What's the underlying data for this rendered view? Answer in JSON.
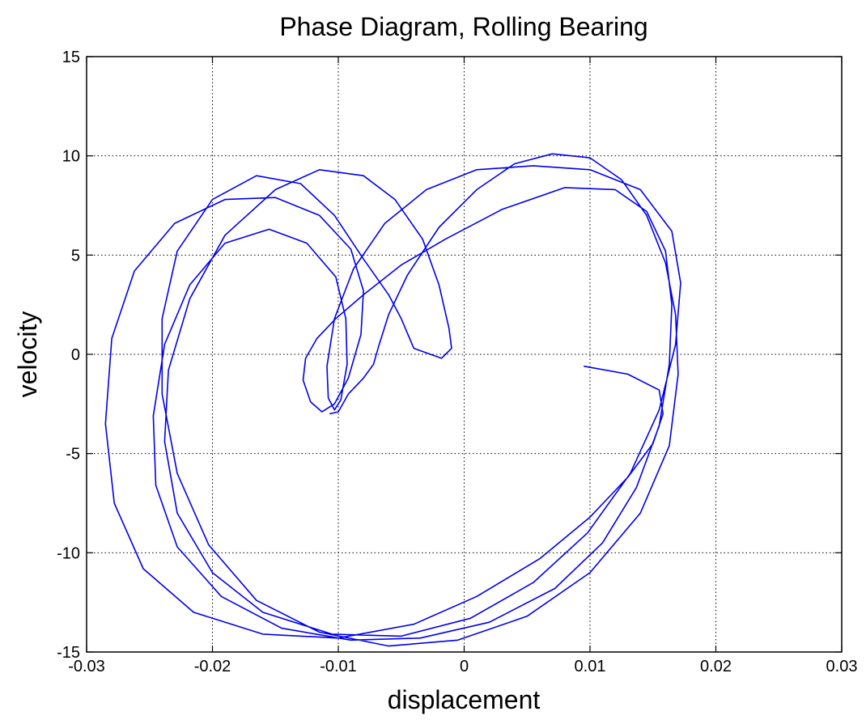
{
  "chart_data": {
    "type": "line",
    "title": "Phase Diagram, Rolling Bearing",
    "xlabel": "displacement",
    "ylabel": "velocity",
    "xlim": [
      -0.03,
      0.03
    ],
    "ylim": [
      -15,
      15
    ],
    "grid": true,
    "grid_style": "dotted",
    "xticks": [
      -0.03,
      -0.02,
      -0.01,
      0,
      0.01,
      0.02,
      0.03
    ],
    "xtick_labels": [
      "-0.03",
      "-0.02",
      "-0.01",
      "0",
      "0.01",
      "0.02",
      "0.03"
    ],
    "yticks": [
      -15,
      -10,
      -5,
      0,
      5,
      10,
      15
    ],
    "ytick_labels": [
      "-15",
      "-10",
      "-5",
      "0",
      "5",
      "10",
      "15"
    ],
    "series": [
      {
        "color": "#0000ee",
        "points": [
          [
            0.0095,
            -0.6
          ],
          [
            0.013,
            -1.0
          ],
          [
            0.0155,
            -1.8
          ],
          [
            0.0158,
            -3.0
          ],
          [
            0.015,
            -4.5
          ],
          [
            0.013,
            -6.2
          ],
          [
            0.01,
            -8.2
          ],
          [
            0.006,
            -10.3
          ],
          [
            0.001,
            -12.2
          ],
          [
            -0.004,
            -13.6
          ],
          [
            -0.01,
            -14.3
          ],
          [
            -0.016,
            -14.1
          ],
          [
            -0.0215,
            -13.0
          ],
          [
            -0.0255,
            -10.8
          ],
          [
            -0.0278,
            -7.5
          ],
          [
            -0.0285,
            -3.5
          ],
          [
            -0.028,
            0.8
          ],
          [
            -0.0262,
            4.2
          ],
          [
            -0.023,
            6.6
          ],
          [
            -0.019,
            7.8
          ],
          [
            -0.015,
            7.9
          ],
          [
            -0.0115,
            7.0
          ],
          [
            -0.009,
            5.3
          ],
          [
            -0.008,
            3.2
          ],
          [
            -0.0082,
            1.0
          ],
          [
            -0.0092,
            -1.2
          ],
          [
            -0.0103,
            -2.5
          ],
          [
            -0.0113,
            -2.9
          ],
          [
            -0.0122,
            -2.4
          ],
          [
            -0.0128,
            -1.3
          ],
          [
            -0.0126,
            -0.2
          ],
          [
            -0.0117,
            0.8
          ],
          [
            -0.0102,
            1.8
          ],
          [
            -0.008,
            3.0
          ],
          [
            -0.005,
            4.5
          ],
          [
            -0.0015,
            5.8
          ],
          [
            0.003,
            7.3
          ],
          [
            0.008,
            8.4
          ],
          [
            0.012,
            8.3
          ],
          [
            0.0145,
            7.2
          ],
          [
            0.016,
            5.2
          ],
          [
            0.0165,
            2.5
          ],
          [
            0.0163,
            -0.5
          ],
          [
            0.0155,
            -3.6
          ],
          [
            0.0137,
            -6.7
          ],
          [
            0.011,
            -9.5
          ],
          [
            0.0072,
            -11.8
          ],
          [
            0.002,
            -13.5
          ],
          [
            -0.0035,
            -14.3
          ],
          [
            -0.009,
            -14.4
          ],
          [
            -0.0145,
            -13.8
          ],
          [
            -0.0193,
            -12.2
          ],
          [
            -0.0228,
            -9.7
          ],
          [
            -0.0245,
            -6.6
          ],
          [
            -0.0247,
            -3.1
          ],
          [
            -0.0238,
            0.5
          ],
          [
            -0.0218,
            3.5
          ],
          [
            -0.019,
            5.6
          ],
          [
            -0.0155,
            6.3
          ],
          [
            -0.0125,
            5.6
          ],
          [
            -0.0102,
            3.9
          ],
          [
            -0.0094,
            1.8
          ],
          [
            -0.0093,
            -0.5
          ],
          [
            -0.0098,
            -2.3
          ],
          [
            -0.0103,
            -2.8
          ],
          [
            -0.0108,
            -2.2
          ],
          [
            -0.0109,
            -0.6
          ],
          [
            -0.0103,
            1.8
          ],
          [
            -0.0088,
            4.3
          ],
          [
            -0.0063,
            6.6
          ],
          [
            -0.003,
            8.3
          ],
          [
            0.001,
            9.3
          ],
          [
            0.0055,
            9.5
          ],
          [
            0.01,
            9.3
          ],
          [
            0.014,
            8.3
          ],
          [
            0.0165,
            6.2
          ],
          [
            0.0172,
            3.6
          ],
          [
            0.0168,
            0.5
          ],
          [
            0.0155,
            -2.8
          ],
          [
            0.0132,
            -6.0
          ],
          [
            0.0098,
            -9.0
          ],
          [
            0.0055,
            -11.5
          ],
          [
            0.0005,
            -13.3
          ],
          [
            -0.005,
            -14.2
          ],
          [
            -0.0105,
            -14.1
          ],
          [
            -0.016,
            -13.0
          ],
          [
            -0.02,
            -11.0
          ],
          [
            -0.0228,
            -8.0
          ],
          [
            -0.0238,
            -4.4
          ],
          [
            -0.0235,
            -0.8
          ],
          [
            -0.0218,
            2.8
          ],
          [
            -0.019,
            6.0
          ],
          [
            -0.015,
            8.3
          ],
          [
            -0.0115,
            9.3
          ],
          [
            -0.008,
            9.0
          ],
          [
            -0.0055,
            7.8
          ],
          [
            -0.0033,
            5.8
          ],
          [
            -0.002,
            3.5
          ],
          [
            -0.0012,
            1.3
          ],
          [
            -0.001,
            0.3
          ],
          [
            -0.0018,
            -0.2
          ],
          [
            -0.004,
            0.3
          ],
          [
            -0.005,
            1.8
          ],
          [
            -0.006,
            3.0
          ],
          [
            -0.008,
            4.8
          ],
          [
            -0.0103,
            7.0
          ],
          [
            -0.013,
            8.6
          ],
          [
            -0.0165,
            9.0
          ],
          [
            -0.02,
            7.8
          ],
          [
            -0.0228,
            5.2
          ],
          [
            -0.024,
            1.8
          ],
          [
            -0.024,
            -2.0
          ],
          [
            -0.0228,
            -6.0
          ],
          [
            -0.0203,
            -9.6
          ],
          [
            -0.0165,
            -12.4
          ],
          [
            -0.0115,
            -14.0
          ],
          [
            -0.006,
            -14.7
          ],
          [
            -0.0005,
            -14.4
          ],
          [
            0.005,
            -13.2
          ],
          [
            0.01,
            -11.0
          ],
          [
            0.014,
            -8.0
          ],
          [
            0.0163,
            -4.6
          ],
          [
            0.017,
            -1.0
          ],
          [
            0.0168,
            2.0
          ],
          [
            0.016,
            4.6
          ],
          [
            0.0145,
            7.0
          ],
          [
            0.0125,
            8.8
          ],
          [
            0.01,
            9.9
          ],
          [
            0.007,
            10.1
          ],
          [
            0.004,
            9.6
          ],
          [
            0.001,
            8.3
          ],
          [
            -0.002,
            6.4
          ],
          [
            -0.0045,
            4.0
          ],
          [
            -0.006,
            2.0
          ],
          [
            -0.0068,
            0.4
          ],
          [
            -0.0072,
            -0.5
          ],
          [
            -0.008,
            -1.2
          ],
          [
            -0.0092,
            -2.0
          ],
          [
            -0.01,
            -2.9
          ],
          [
            -0.0107,
            -3.0
          ]
        ]
      }
    ]
  }
}
